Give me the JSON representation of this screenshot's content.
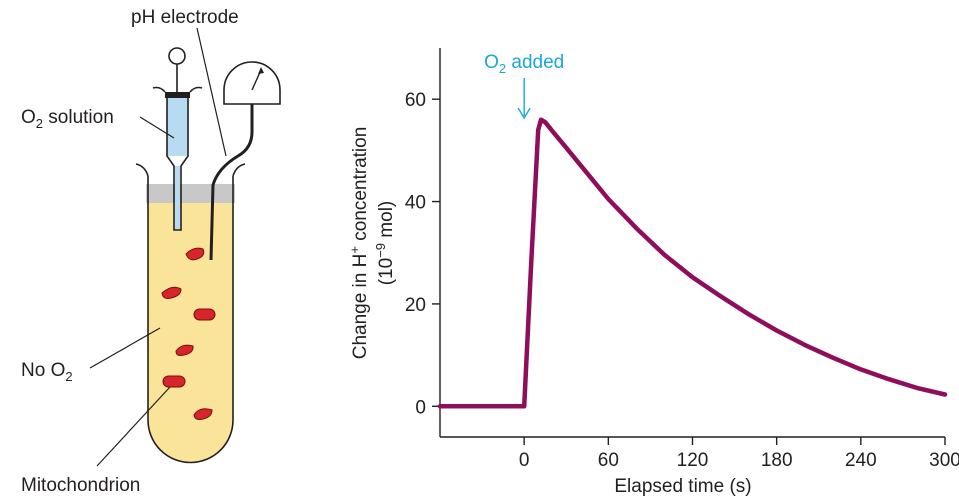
{
  "apparatus": {
    "labels": {
      "ph_electrode": "pH electrode",
      "o2_solution_main": "O",
      "o2_solution_sub": "2",
      "o2_solution_rest": " solution",
      "no_o2_main": "No O",
      "no_o2_sub": "2",
      "mitochondrion": "Mitochondrion"
    },
    "colors": {
      "medium": "#fae49a",
      "syringe_fluid": "#b7dbf0",
      "stopper": "#c8c8c8",
      "mitochondria": "#d7262b"
    }
  },
  "chart_data": {
    "type": "line",
    "title": "",
    "xlabel": "Elapsed time (s)",
    "ylabel_line1_prefix": "Change in H",
    "ylabel_line1_sup": "+",
    "ylabel_line1_suffix": " concentration",
    "ylabel_line2_prefix": "(10",
    "ylabel_line2_sup": "−9",
    "ylabel_line2_suffix": " mol)",
    "xlim": [
      -60,
      300
    ],
    "ylim": [
      -6,
      70
    ],
    "xticks": [
      0,
      60,
      120,
      180,
      240,
      300
    ],
    "xtick_labels": [
      "0",
      "60",
      "120",
      "180",
      "240",
      "300"
    ],
    "yticks": [
      0,
      20,
      40,
      60
    ],
    "ytick_labels": [
      "0",
      "20",
      "40",
      "60"
    ],
    "annotation": {
      "text_main": "O",
      "text_sub": "2",
      "text_rest": " added",
      "x": 0,
      "color": "#1ba8d6"
    },
    "series": [
      {
        "color": "#8e0e5c",
        "x": [
          -60,
          -3,
          0,
          5,
          10,
          12,
          15,
          20,
          30,
          45,
          60,
          80,
          100,
          120,
          140,
          160,
          180,
          200,
          220,
          240,
          260,
          280,
          300
        ],
        "y": [
          0,
          0,
          0,
          28,
          54,
          56,
          55.5,
          53.8,
          50.5,
          45.5,
          40.5,
          34.8,
          29.6,
          25.2,
          21.5,
          18,
          14.8,
          12,
          9.5,
          7.2,
          5.3,
          3.6,
          2.3
        ]
      }
    ]
  }
}
